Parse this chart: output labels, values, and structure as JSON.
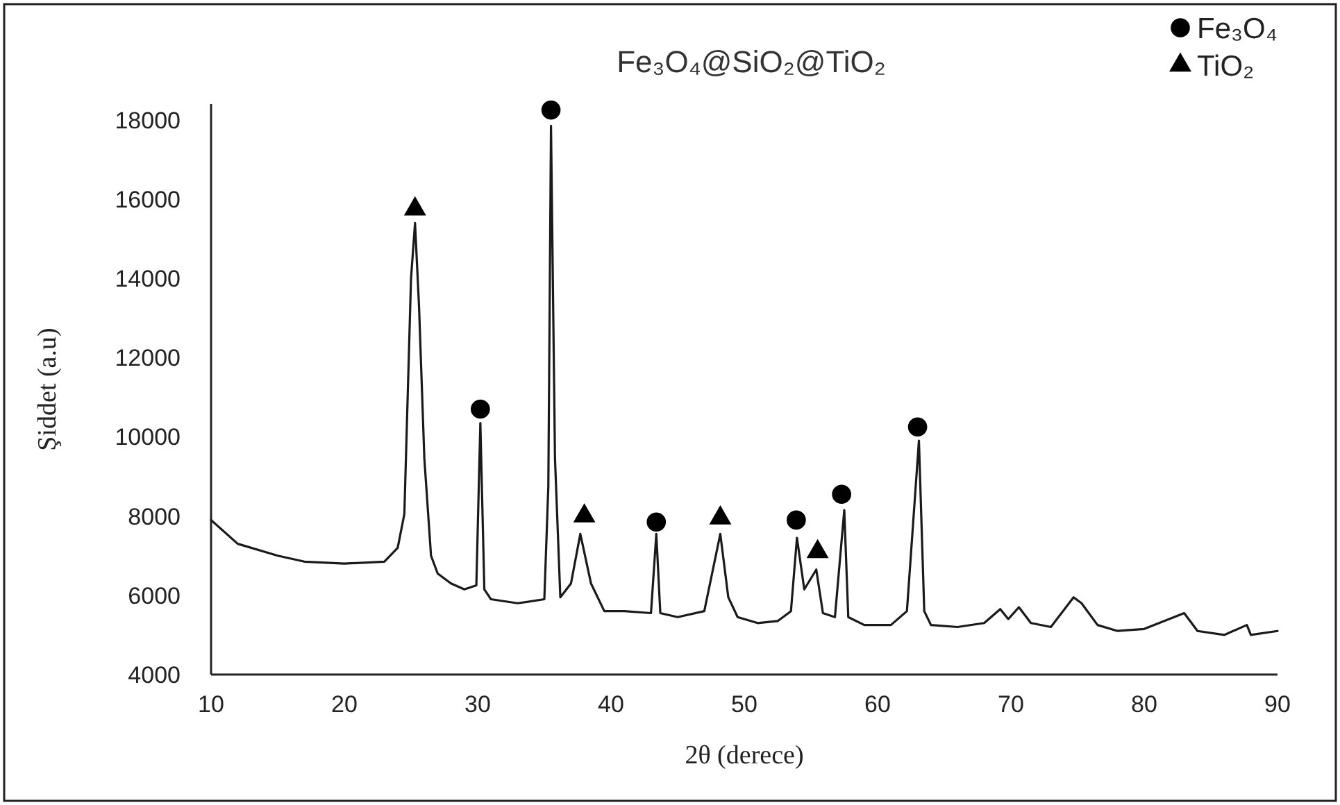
{
  "chart_data": {
    "type": "line",
    "title": "Fe₃O₄@SiO₂@TiO₂",
    "xlabel": "2θ (derece)",
    "ylabel": "Şiddet (a.u)",
    "xlim": [
      10,
      90
    ],
    "xticks": [
      10,
      20,
      30,
      40,
      50,
      60,
      70,
      80,
      90
    ],
    "ylim": [
      4000,
      18400
    ],
    "yticks": [
      4000,
      6000,
      8000,
      10000,
      12000,
      14000,
      16000,
      18000
    ],
    "grid": false,
    "legend": "top right",
    "series": [
      {
        "type": "line",
        "color": "#1a1a1a",
        "marker": "none",
        "line_style": "solid",
        "x": [
          10,
          12,
          15,
          17,
          20,
          23,
          24,
          24.5,
          25,
          25.3,
          25.6,
          26,
          26.5,
          27,
          28,
          29,
          29.9,
          30.2,
          30.5,
          31,
          33,
          35,
          35.3,
          35.5,
          35.8,
          36.2,
          37,
          37.7,
          38.5,
          39.5,
          41,
          43,
          43.4,
          43.7,
          45,
          47,
          48.2,
          48.8,
          49.5,
          51,
          52.5,
          53.5,
          53.95,
          54.5,
          55.4,
          55.9,
          56.8,
          57.5,
          57.8,
          59,
          61,
          62.2,
          63.1,
          63.5,
          64,
          66,
          68,
          69.2,
          69.8,
          70.6,
          71.5,
          73,
          74.7,
          75.3,
          76.5,
          78,
          80,
          83,
          84,
          86,
          87.7,
          88,
          90
        ],
        "values": [
          7900,
          7300,
          7000,
          6850,
          6800,
          6850,
          7200,
          8050,
          14000,
          15400,
          13300,
          9450,
          7000,
          6550,
          6300,
          6150,
          6250,
          10350,
          6150,
          5900,
          5800,
          5900,
          8750,
          17850,
          9450,
          5950,
          6300,
          7550,
          6300,
          5600,
          5600,
          5550,
          7550,
          5550,
          5450,
          5600,
          7550,
          5950,
          5450,
          5300,
          5350,
          5600,
          7450,
          6150,
          6650,
          5550,
          5450,
          8150,
          5450,
          5250,
          5250,
          5600,
          9900,
          5600,
          5250,
          5200,
          5300,
          5650,
          5400,
          5700,
          5300,
          5200,
          5950,
          5800,
          5250,
          5100,
          5150,
          5550,
          5100,
          5000,
          5250,
          5000,
          5100
        ]
      },
      {
        "type": "scatter",
        "name": "Fe₃O₄",
        "color": "#000000",
        "marker": "circle",
        "x": [
          30.2,
          35.5,
          43.4,
          53.9,
          57.3,
          63.0
        ],
        "values": [
          10700,
          18250,
          7850,
          7900,
          8550,
          10250
        ]
      },
      {
        "type": "scatter",
        "name": "TiO₂",
        "color": "#000000",
        "marker": "triangle",
        "x": [
          25.3,
          38,
          48.2,
          55.5
        ],
        "values": [
          15750,
          8000,
          7950,
          7100
        ]
      }
    ]
  }
}
